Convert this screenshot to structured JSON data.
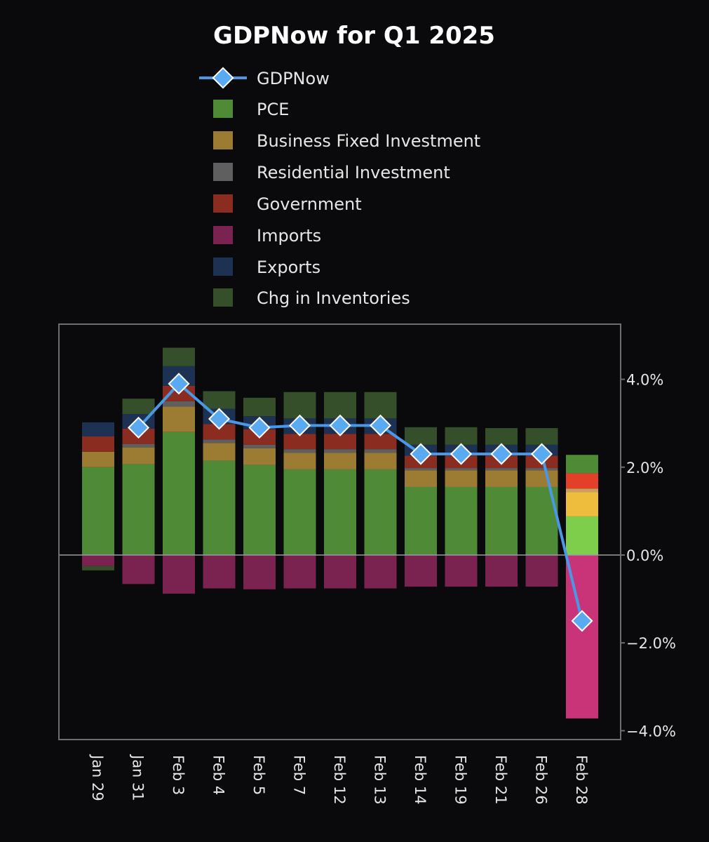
{
  "chart_data": {
    "type": "bar",
    "title": "GDPNow for Q1 2025",
    "categories": [
      "Jan 29",
      "Jan 31",
      "Feb 3",
      "Feb 4",
      "Feb 5",
      "Feb 7",
      "Feb 12",
      "Feb 13",
      "Feb 14",
      "Feb 19",
      "Feb 21",
      "Feb 26",
      "Feb 28"
    ],
    "ylim": [
      -4.2,
      5.2
    ],
    "yticks": [
      4.0,
      2.0,
      0.0,
      -2.0,
      -4.0
    ],
    "ytick_labels": [
      "4.0%",
      "2.0%",
      "0.0%",
      "−2.0%",
      "−4.0%"
    ],
    "y_axis_position": "right",
    "legend_position": "top",
    "series": [
      {
        "name": "PCE",
        "color": "#4f8a37",
        "values": [
          2.0,
          2.07,
          2.8,
          2.15,
          2.05,
          1.95,
          1.95,
          1.95,
          1.55,
          1.55,
          1.55,
          1.55,
          0.88
        ]
      },
      {
        "name": "Business Fixed Investment",
        "color": "#9c7b33",
        "values": [
          0.35,
          0.38,
          0.58,
          0.4,
          0.38,
          0.38,
          0.38,
          0.38,
          0.38,
          0.38,
          0.38,
          0.38,
          0.55
        ]
      },
      {
        "name": "Residential Investment",
        "color": "#5f5f5f",
        "values": [
          0,
          0.08,
          0.12,
          0.08,
          0.08,
          0.08,
          0.08,
          0.08,
          0.05,
          0.05,
          0.05,
          0.05,
          0.08
        ]
      },
      {
        "name": "Government",
        "color": "#8a2c20",
        "values": [
          0.35,
          0.35,
          0.35,
          0.35,
          0.35,
          0.35,
          0.35,
          0.35,
          0.28,
          0.28,
          0.28,
          0.28,
          0.35
        ]
      },
      {
        "name": "Imports",
        "color": "#7a2350",
        "values": [
          -0.25,
          -0.66,
          -0.88,
          -0.76,
          -0.78,
          -0.76,
          -0.76,
          -0.76,
          -0.72,
          -0.72,
          -0.72,
          -0.72,
          -3.72
        ]
      },
      {
        "name": "Exports",
        "color": "#1d3153",
        "values": [
          0.32,
          0.33,
          0.45,
          0.35,
          0.3,
          0.35,
          0.35,
          0.35,
          0.25,
          0.25,
          0.25,
          0.25,
          0
        ]
      },
      {
        "name": "Chg in Inventories",
        "color": "#354f2a",
        "values": [
          -0.1,
          0.35,
          0.42,
          0.4,
          0.42,
          0.6,
          0.6,
          0.6,
          0.4,
          0.4,
          0.38,
          0.38,
          0.42
        ]
      }
    ],
    "feb28_colors": {
      "PCE": "#7fce4b",
      "Business Fixed Investment": "#eebd3e",
      "Residential Investment": "#c9a05f",
      "Government": "#e24028",
      "Imports": "#c93479",
      "Chg in Inventories": "#4f8a37"
    },
    "line": {
      "name": "GDPNow",
      "color": "#4a97e6",
      "marker_color": "#5aaaf2",
      "values": [
        null,
        2.9,
        3.9,
        3.1,
        2.9,
        2.95,
        2.95,
        2.95,
        2.3,
        2.3,
        2.3,
        2.3,
        -1.5
      ]
    }
  }
}
